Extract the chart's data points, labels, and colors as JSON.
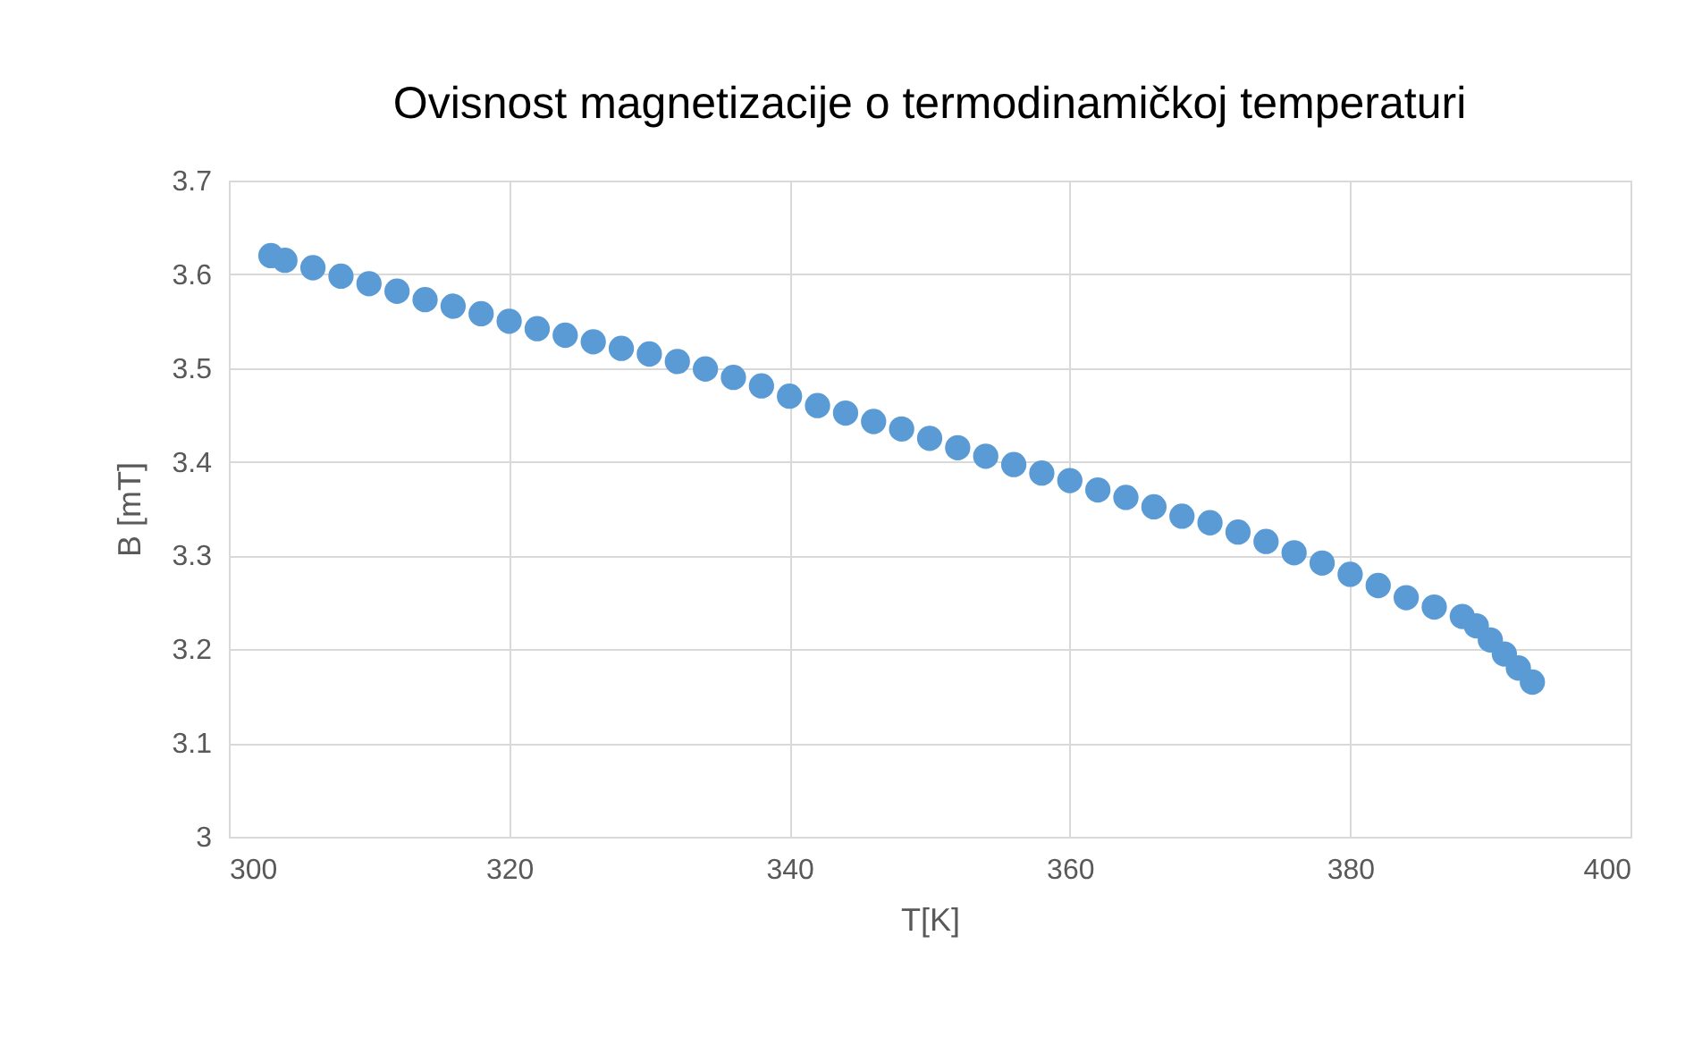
{
  "chart_data": {
    "type": "scatter",
    "title": "Ovisnost magnetizacije o termodinamičkoj temperaturi",
    "xlabel": "T[K]",
    "ylabel": "B [mT]",
    "x": [
      303,
      304,
      306,
      308,
      310,
      312,
      314,
      316,
      318,
      320,
      322,
      324,
      326,
      328,
      330,
      332,
      334,
      336,
      338,
      340,
      342,
      344,
      346,
      348,
      350,
      352,
      354,
      356,
      358,
      360,
      362,
      364,
      366,
      368,
      370,
      372,
      374,
      376,
      378,
      380,
      382,
      384,
      386,
      388,
      389,
      390,
      391,
      392,
      393
    ],
    "series": [
      {
        "color": "#5b9bd5",
        "values": [
          3.62,
          3.615,
          3.607,
          3.598,
          3.59,
          3.582,
          3.573,
          3.566,
          3.558,
          3.55,
          3.542,
          3.535,
          3.528,
          3.521,
          3.515,
          3.507,
          3.499,
          3.49,
          3.481,
          3.47,
          3.46,
          3.452,
          3.443,
          3.435,
          3.425,
          3.415,
          3.406,
          3.397,
          3.388,
          3.38,
          3.37,
          3.362,
          3.352,
          3.342,
          3.335,
          3.325,
          3.315,
          3.303,
          3.292,
          3.28,
          3.268,
          3.255,
          3.245,
          3.235,
          3.225,
          3.21,
          3.195,
          3.18,
          3.165
        ]
      }
    ],
    "xlim": [
      300,
      400
    ],
    "xticks": [
      300,
      320,
      340,
      360,
      380,
      400
    ],
    "ylim": [
      3,
      3.7
    ],
    "yticks": [
      3,
      3.1,
      3.2,
      3.3,
      3.4,
      3.5,
      3.6,
      3.7
    ],
    "grid": true,
    "marker": "circle"
  }
}
